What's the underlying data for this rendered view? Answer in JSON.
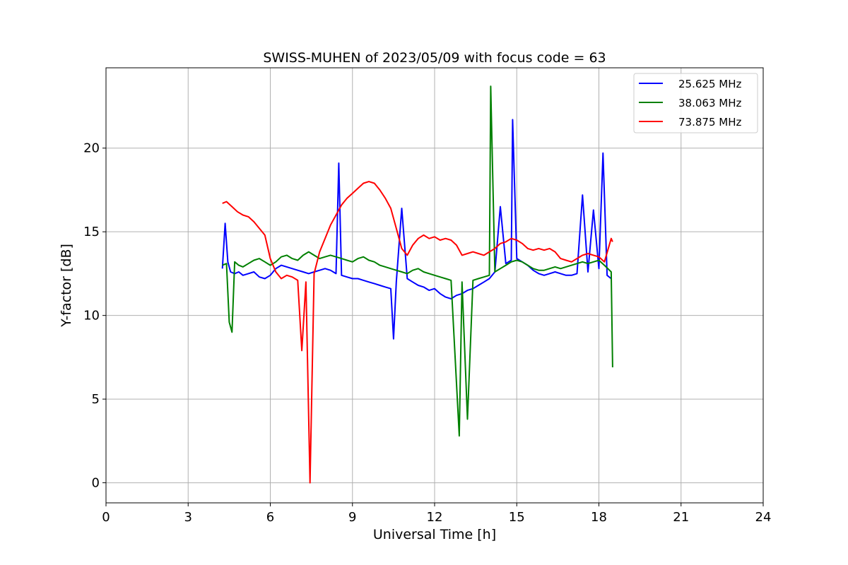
{
  "chart_data": {
    "type": "line",
    "title": "SWISS-MUHEN of 2023/05/09 with focus code = 63",
    "xlabel": "Universal Time [h]",
    "ylabel": "Y-factor [dB]",
    "xlim": [
      0,
      24
    ],
    "ylim": [
      -1.2,
      24.8
    ],
    "xticks": [
      0,
      3,
      6,
      9,
      12,
      15,
      18,
      21,
      24
    ],
    "yticks": [
      0,
      5,
      10,
      15,
      20
    ],
    "grid": true,
    "legend_position": "top-right",
    "series": [
      {
        "name": "25.625 MHz",
        "color": "#0000ff",
        "x": [
          4.25,
          4.35,
          4.45,
          4.55,
          4.7,
          4.85,
          5.0,
          5.2,
          5.4,
          5.6,
          5.8,
          6.0,
          6.2,
          6.4,
          6.6,
          6.8,
          7.0,
          7.2,
          7.4,
          7.6,
          7.8,
          8.0,
          8.2,
          8.4,
          8.5,
          8.6,
          8.8,
          9.0,
          9.2,
          9.4,
          9.6,
          9.8,
          10.0,
          10.2,
          10.4,
          10.5,
          10.6,
          10.8,
          11.0,
          11.2,
          11.4,
          11.6,
          11.8,
          12.0,
          12.2,
          12.4,
          12.6,
          12.8,
          13.0,
          13.2,
          13.4,
          13.6,
          13.8,
          14.0,
          14.2,
          14.4,
          14.6,
          14.8,
          14.85,
          15.0,
          15.2,
          15.4,
          15.6,
          15.8,
          16.0,
          16.2,
          16.4,
          16.6,
          16.8,
          17.0,
          17.2,
          17.4,
          17.6,
          17.8,
          18.0,
          18.15,
          18.3,
          18.45
        ],
        "y": [
          12.8,
          15.5,
          13.2,
          12.6,
          12.5,
          12.6,
          12.4,
          12.5,
          12.6,
          12.3,
          12.2,
          12.4,
          12.8,
          13.0,
          12.9,
          12.8,
          12.7,
          12.6,
          12.5,
          12.6,
          12.7,
          12.8,
          12.7,
          12.5,
          19.1,
          12.4,
          12.3,
          12.2,
          12.2,
          12.1,
          12.0,
          11.9,
          11.8,
          11.7,
          11.6,
          8.6,
          12.0,
          16.4,
          12.2,
          12.0,
          11.8,
          11.7,
          11.5,
          11.6,
          11.3,
          11.1,
          11.0,
          11.2,
          11.3,
          11.5,
          11.6,
          11.8,
          12.0,
          12.2,
          12.6,
          16.5,
          13.1,
          13.3,
          21.7,
          13.4,
          13.2,
          13.0,
          12.7,
          12.5,
          12.4,
          12.5,
          12.6,
          12.5,
          12.4,
          12.4,
          12.5,
          17.2,
          12.6,
          16.3,
          12.8,
          19.7,
          12.4,
          12.2
        ]
      },
      {
        "name": "38.063 MHz",
        "color": "#008000",
        "x": [
          4.25,
          4.4,
          4.5,
          4.6,
          4.7,
          4.85,
          5.0,
          5.2,
          5.4,
          5.6,
          5.8,
          6.0,
          6.2,
          6.4,
          6.6,
          6.8,
          7.0,
          7.2,
          7.4,
          7.6,
          7.8,
          8.0,
          8.2,
          8.4,
          8.6,
          8.8,
          9.0,
          9.2,
          9.4,
          9.6,
          9.8,
          10.0,
          10.2,
          10.4,
          10.6,
          10.8,
          11.0,
          11.2,
          11.4,
          11.6,
          11.8,
          12.0,
          12.2,
          12.4,
          12.6,
          12.9,
          13.0,
          13.2,
          13.4,
          13.6,
          13.8,
          14.0,
          14.05,
          14.2,
          14.4,
          14.6,
          14.8,
          15.0,
          15.2,
          15.4,
          15.6,
          15.8,
          16.0,
          16.2,
          16.4,
          16.6,
          16.8,
          17.0,
          17.2,
          17.4,
          17.6,
          17.8,
          18.0,
          18.2,
          18.45,
          18.5
        ],
        "y": [
          13.0,
          13.1,
          9.6,
          9.0,
          13.2,
          13.0,
          12.9,
          13.1,
          13.3,
          13.4,
          13.2,
          13.0,
          13.2,
          13.5,
          13.6,
          13.4,
          13.3,
          13.6,
          13.8,
          13.6,
          13.4,
          13.5,
          13.6,
          13.5,
          13.4,
          13.3,
          13.2,
          13.4,
          13.5,
          13.3,
          13.2,
          13.0,
          12.9,
          12.8,
          12.7,
          12.6,
          12.5,
          12.7,
          12.8,
          12.6,
          12.5,
          12.4,
          12.3,
          12.2,
          12.1,
          2.8,
          12.0,
          3.8,
          12.1,
          12.2,
          12.3,
          12.4,
          23.7,
          12.6,
          12.8,
          13.0,
          13.2,
          13.3,
          13.2,
          13.0,
          12.8,
          12.7,
          12.7,
          12.8,
          12.9,
          12.8,
          12.9,
          13.0,
          13.1,
          13.2,
          13.1,
          13.2,
          13.3,
          13.0,
          12.6,
          6.9
        ]
      },
      {
        "name": "73.875 MHz",
        "color": "#ff0000",
        "x": [
          4.25,
          4.4,
          4.6,
          4.8,
          5.0,
          5.2,
          5.4,
          5.6,
          5.8,
          6.0,
          6.2,
          6.4,
          6.6,
          6.8,
          7.0,
          7.15,
          7.3,
          7.45,
          7.6,
          7.8,
          8.0,
          8.2,
          8.4,
          8.6,
          8.8,
          9.0,
          9.2,
          9.4,
          9.6,
          9.8,
          10.0,
          10.2,
          10.4,
          10.6,
          10.8,
          11.0,
          11.2,
          11.4,
          11.6,
          11.8,
          12.0,
          12.2,
          12.4,
          12.6,
          12.8,
          13.0,
          13.2,
          13.4,
          13.6,
          13.8,
          14.0,
          14.2,
          14.4,
          14.6,
          14.8,
          15.0,
          15.2,
          15.4,
          15.6,
          15.8,
          16.0,
          16.2,
          16.4,
          16.6,
          16.8,
          17.0,
          17.2,
          17.4,
          17.6,
          17.8,
          18.0,
          18.2,
          18.45,
          18.5
        ],
        "y": [
          16.7,
          16.8,
          16.5,
          16.2,
          16.0,
          15.9,
          15.6,
          15.2,
          14.8,
          13.4,
          12.6,
          12.2,
          12.4,
          12.3,
          12.1,
          7.9,
          12.0,
          0.0,
          12.5,
          13.8,
          14.6,
          15.4,
          16.0,
          16.6,
          17.0,
          17.3,
          17.6,
          17.9,
          18.0,
          17.9,
          17.5,
          17.0,
          16.4,
          15.2,
          14.0,
          13.6,
          14.2,
          14.6,
          14.8,
          14.6,
          14.7,
          14.5,
          14.6,
          14.5,
          14.2,
          13.6,
          13.7,
          13.8,
          13.7,
          13.6,
          13.8,
          14.0,
          14.3,
          14.4,
          14.6,
          14.5,
          14.3,
          14.0,
          13.9,
          14.0,
          13.9,
          14.0,
          13.8,
          13.4,
          13.3,
          13.2,
          13.4,
          13.6,
          13.7,
          13.6,
          13.5,
          13.2,
          14.6,
          14.4
        ]
      }
    ]
  }
}
